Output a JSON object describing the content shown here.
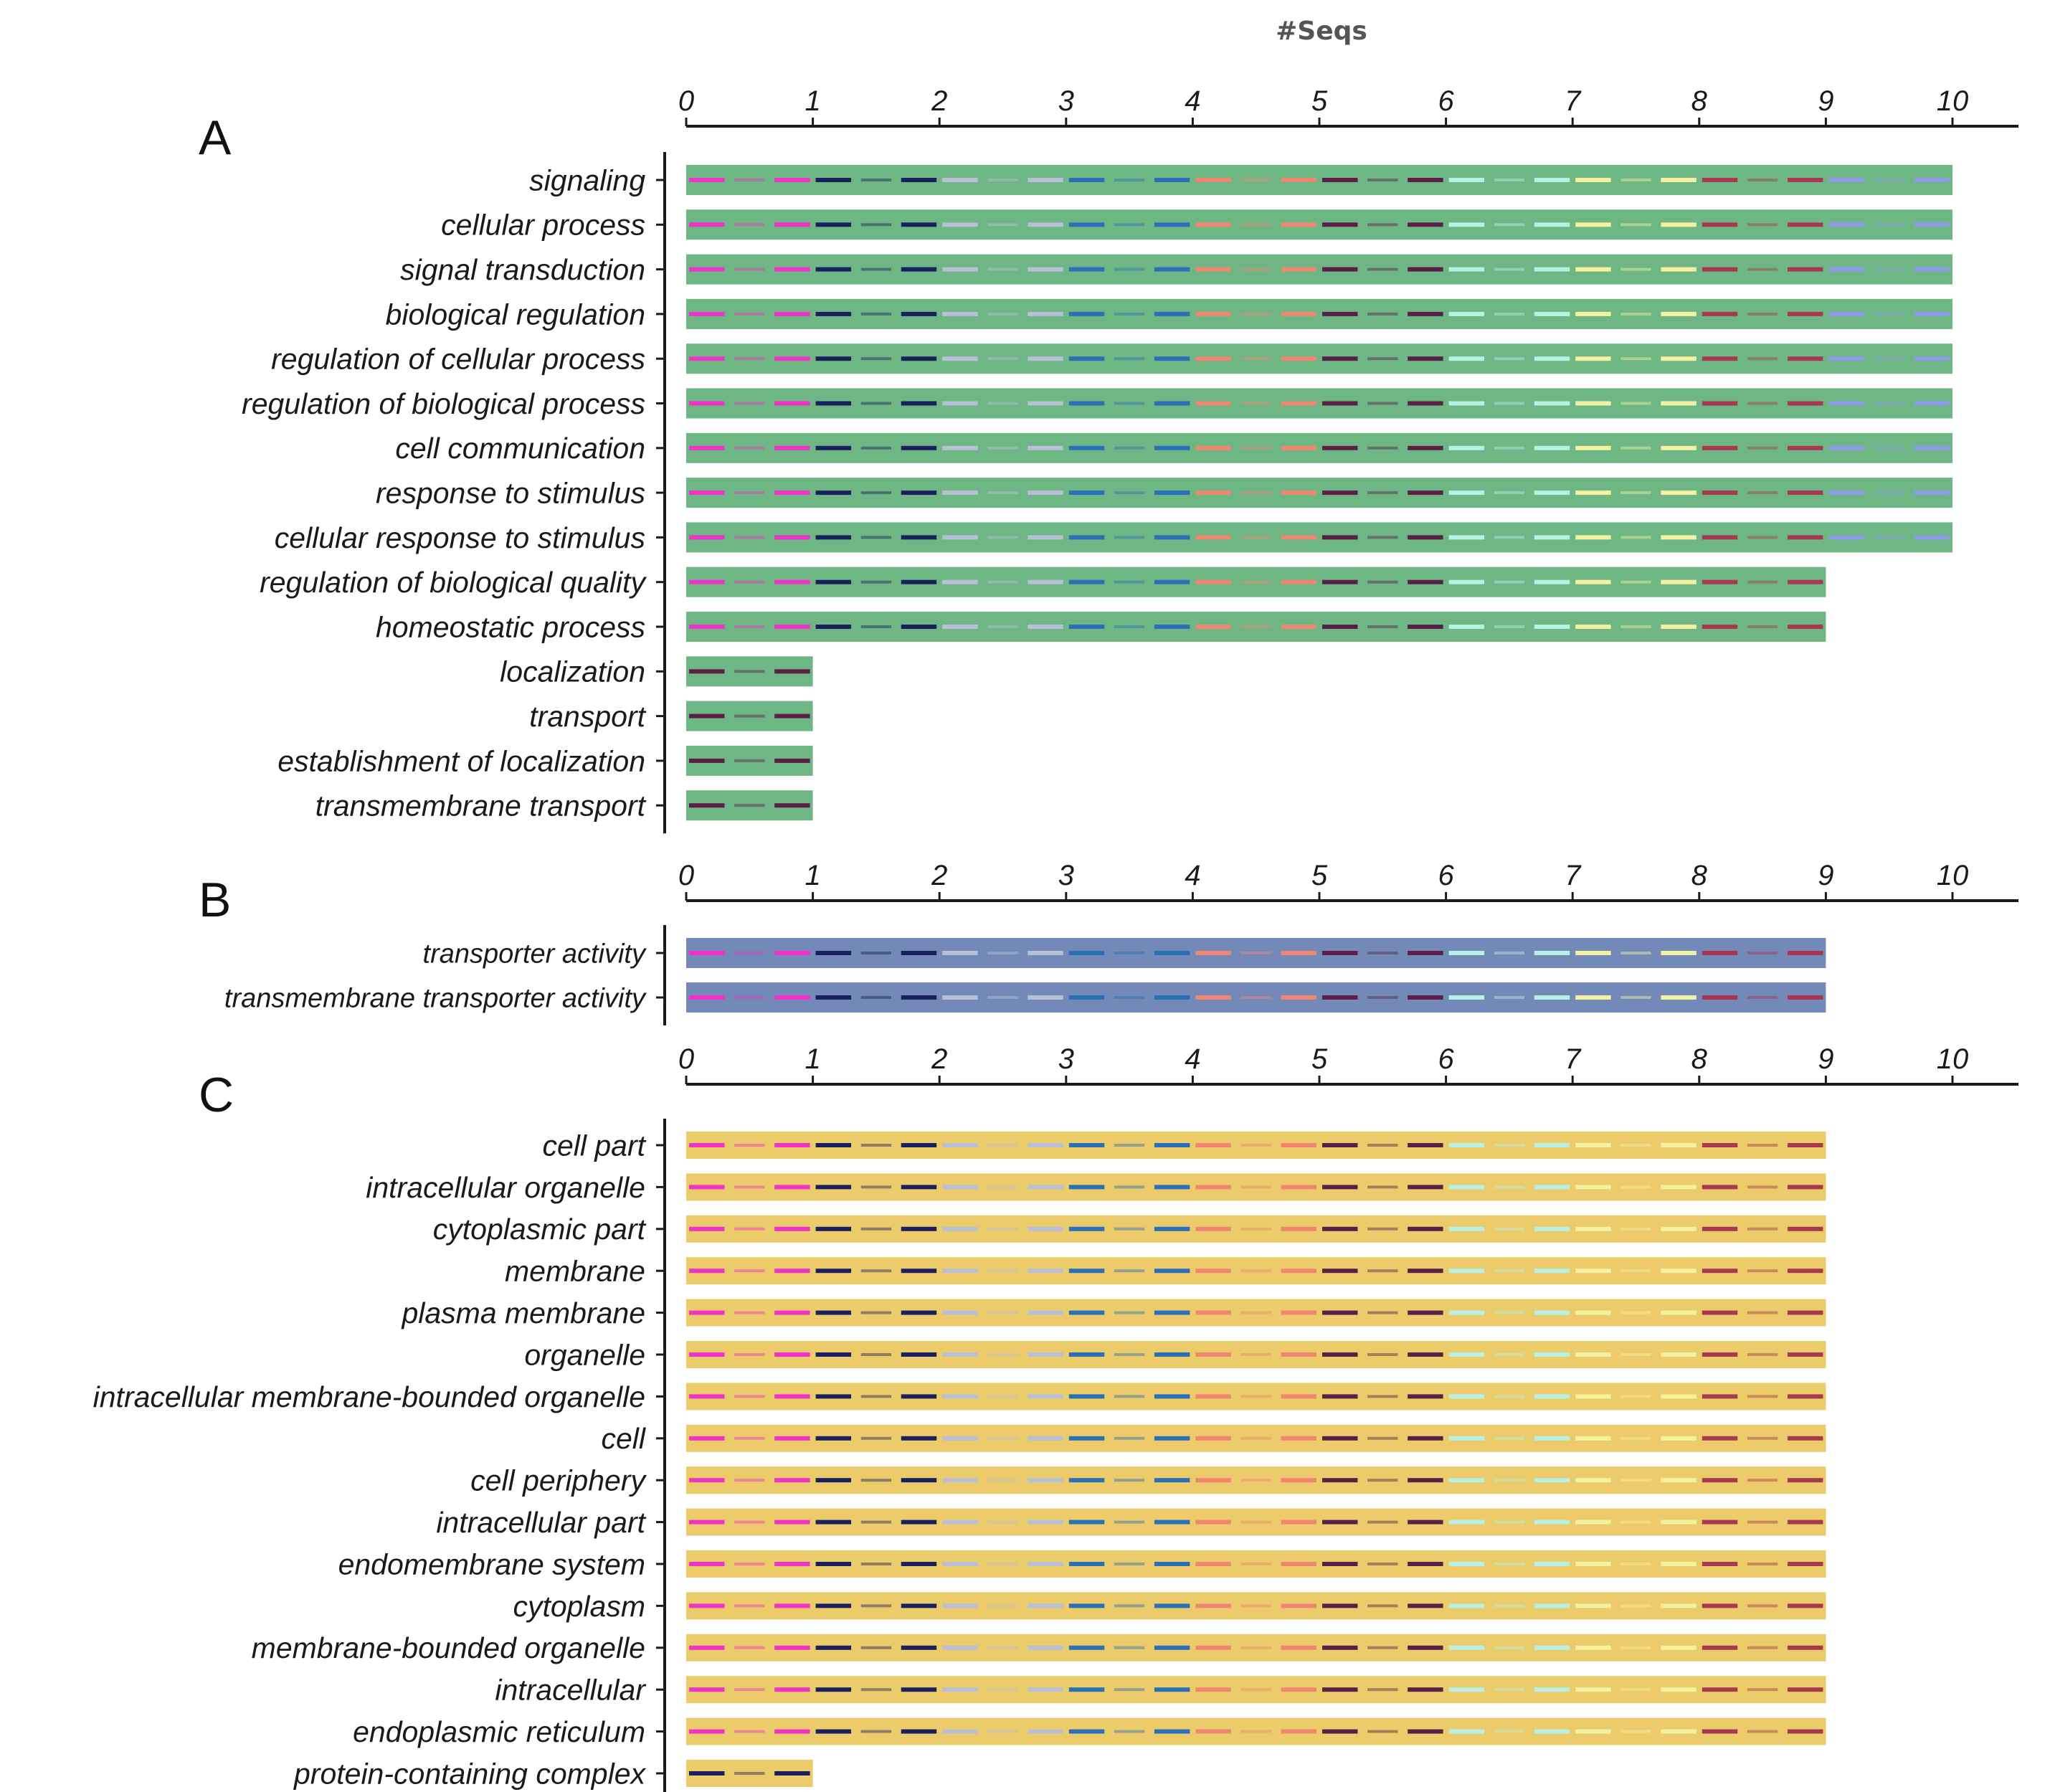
{
  "colors": {
    "panel_A_bar": "#6fb685",
    "panel_B_bar": "#7389b8",
    "panel_C_bar": "#eccb6a",
    "axis": "#1a1a1a",
    "segment_palette": [
      "#f032c8",
      "#1b1f5e",
      "#b9bfd6",
      "#2a70b8",
      "#f08672",
      "#5a1e47",
      "#b7f0e4",
      "#f4f2a2",
      "#a8384f",
      "#8f9be8"
    ]
  },
  "chart_data": {
    "type": "bar",
    "xlabel": "#Seqs",
    "panels": [
      {
        "letter": "A",
        "xlim": [
          0,
          10
        ],
        "ticks": [
          "0",
          "1",
          "2",
          "3",
          "4",
          "5",
          "6",
          "7",
          "8",
          "9",
          "10"
        ],
        "categories": [
          "signaling",
          "cellular process",
          "signal transduction",
          "biological regulation",
          "regulation of cellular process",
          "regulation of biological process",
          "cell communication",
          "response to stimulus",
          "cellular response to stimulus",
          "regulation of biological quality",
          "homeostatic process",
          "localization",
          "transport",
          "establishment of localization",
          "transmembrane transport"
        ],
        "values": [
          10,
          10,
          10,
          10,
          10,
          10,
          10,
          10,
          10,
          9,
          9,
          1,
          1,
          1,
          1
        ]
      },
      {
        "letter": "B",
        "xlim": [
          0,
          10
        ],
        "ticks": [
          "0",
          "1",
          "2",
          "3",
          "4",
          "5",
          "6",
          "7",
          "8",
          "9",
          "10"
        ],
        "categories": [
          "transporter activity",
          "transmembrane transporter activity"
        ],
        "values": [
          9,
          9
        ]
      },
      {
        "letter": "C",
        "xlim": [
          0,
          10
        ],
        "ticks": [
          "0",
          "1",
          "2",
          "3",
          "4",
          "5",
          "6",
          "7",
          "8",
          "9",
          "10"
        ],
        "categories": [
          "cell part",
          "intracellular organelle",
          "cytoplasmic part",
          "membrane",
          "plasma membrane",
          "organelle",
          "intracellular membrane-bounded organelle",
          "cell",
          "cell periphery",
          "intracellular part",
          "endomembrane system",
          "cytoplasm",
          "membrane-bounded organelle",
          "intracellular",
          "endoplasmic reticulum",
          "protein-containing complex"
        ],
        "values": [
          9,
          9,
          9,
          9,
          9,
          9,
          9,
          9,
          9,
          9,
          9,
          9,
          9,
          9,
          9,
          1
        ]
      }
    ]
  }
}
